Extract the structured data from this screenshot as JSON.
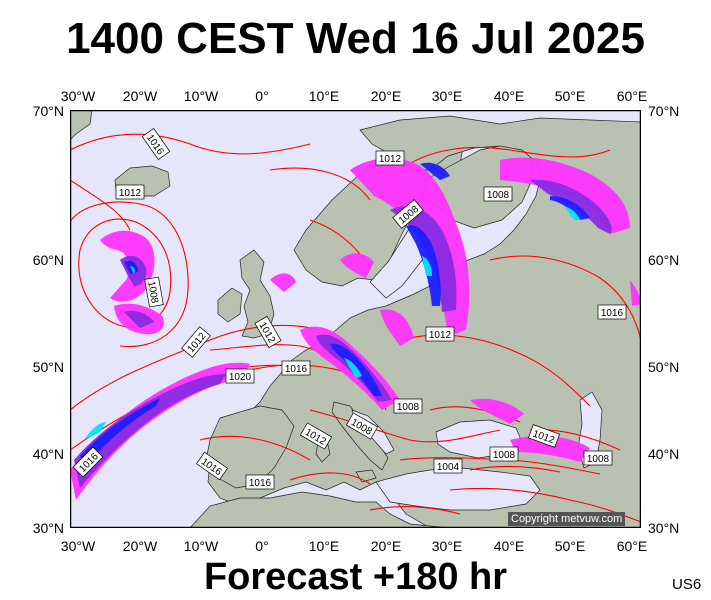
{
  "title": "1400 CEST Wed 16 Jul 2025",
  "footer": "Forecast +180 hr",
  "model_code": "US6",
  "copyright": "Copyright metvuw.com",
  "lon_ticks": [
    "30°W",
    "20°W",
    "10°W",
    "0°",
    "10°E",
    "20°E",
    "30°E",
    "40°E",
    "50°E",
    "60°E"
  ],
  "lat_ticks": [
    "70°N",
    "60°N",
    "50°N",
    "40°N",
    "30°N"
  ],
  "isobar_labels": [
    "1016",
    "1012",
    "1012",
    "1008",
    "1008",
    "1008",
    "1012",
    "1016",
    "1012",
    "1012",
    "1020",
    "1016",
    "1008",
    "1008",
    "1016",
    "1016",
    "1012",
    "1004",
    "1008",
    "1016",
    "1012",
    "1008"
  ],
  "colors": {
    "ocean": "#e6e6fa",
    "land": "#b9c2b0",
    "isobar": "#ff0000",
    "rain_light": "#ff33ff",
    "rain_mid": "#8a2be2",
    "rain_heavy": "#1e1eff",
    "rain_core": "#00e5ff"
  }
}
